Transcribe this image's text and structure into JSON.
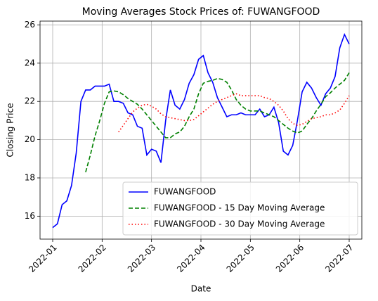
{
  "chart_data": {
    "type": "line",
    "title": "Moving Averages Stock Prices of: FUWANGFOOD",
    "x_label": "Date",
    "y_label": "Closing Price",
    "xlim": [
      "2022-01",
      "2022-07"
    ],
    "xticks": [
      "2022-01",
      "2022-02",
      "2022-03",
      "2022-04",
      "2022-05",
      "2022-06",
      "2022-07"
    ],
    "ylim": [
      14.8,
      26.2
    ],
    "yticks": [
      16,
      18,
      20,
      22,
      24,
      26
    ],
    "grid": true,
    "legend": "lower right",
    "series": [
      {
        "name": "FUWANGFOOD",
        "color": "#0000ff",
        "style": "solid",
        "values": [
          15.4,
          15.6,
          16.6,
          16.8,
          17.6,
          19.3,
          22.0,
          22.6,
          22.6,
          22.8,
          22.8,
          22.8,
          22.9,
          22.0,
          22.0,
          21.9,
          21.4,
          21.3,
          20.7,
          20.6,
          19.2,
          19.5,
          19.4,
          18.8,
          21.0,
          22.6,
          21.8,
          21.6,
          22.1,
          22.95,
          23.4,
          24.2,
          24.4,
          23.5,
          23.0,
          22.2,
          21.7,
          21.2,
          21.3,
          21.3,
          21.4,
          21.3,
          21.3,
          21.3,
          21.6,
          21.2,
          21.3,
          21.7,
          20.9,
          19.4,
          19.2,
          19.7,
          21.0,
          22.5,
          23.0,
          22.7,
          22.2,
          21.8,
          22.4,
          22.7,
          23.3,
          24.8,
          25.5,
          25.0
        ]
      },
      {
        "name": "FUWANGFOOD - 15 Day Moving Average",
        "color": "#008000",
        "style": "dashed",
        "values": [
          null,
          null,
          null,
          null,
          null,
          null,
          null,
          18.3,
          19.2,
          20.2,
          21.0,
          21.9,
          22.5,
          22.55,
          22.5,
          22.35,
          22.15,
          22.0,
          21.85,
          21.6,
          21.3,
          21.0,
          20.7,
          20.4,
          20.1,
          20.1,
          20.3,
          20.4,
          20.7,
          21.2,
          21.6,
          22.4,
          22.95,
          23.05,
          23.1,
          23.2,
          23.15,
          23.0,
          22.6,
          22.1,
          21.8,
          21.6,
          21.5,
          21.5,
          21.5,
          21.4,
          21.3,
          21.2,
          21.0,
          20.8,
          20.6,
          20.45,
          20.35,
          20.45,
          20.8,
          21.1,
          21.5,
          21.85,
          22.25,
          22.45,
          22.7,
          22.9,
          23.1,
          23.5
        ]
      },
      {
        "name": "FUWANGFOOD - 30 Day Moving Average",
        "color": "#ff0000",
        "style": "dotted",
        "values": [
          null,
          null,
          null,
          null,
          null,
          null,
          null,
          null,
          null,
          null,
          null,
          null,
          null,
          null,
          20.4,
          20.75,
          21.1,
          21.45,
          21.65,
          21.8,
          21.85,
          21.75,
          21.6,
          21.35,
          21.2,
          21.15,
          21.1,
          21.05,
          21.0,
          21.0,
          21.05,
          21.25,
          21.45,
          21.65,
          21.85,
          22.0,
          22.1,
          22.2,
          22.3,
          22.4,
          22.3,
          22.3,
          22.3,
          22.3,
          22.3,
          22.2,
          22.15,
          22.0,
          21.8,
          21.5,
          21.1,
          20.85,
          20.75,
          20.8,
          20.95,
          21.1,
          21.15,
          21.2,
          21.3,
          21.3,
          21.4,
          21.55,
          21.9,
          22.3
        ]
      }
    ]
  }
}
